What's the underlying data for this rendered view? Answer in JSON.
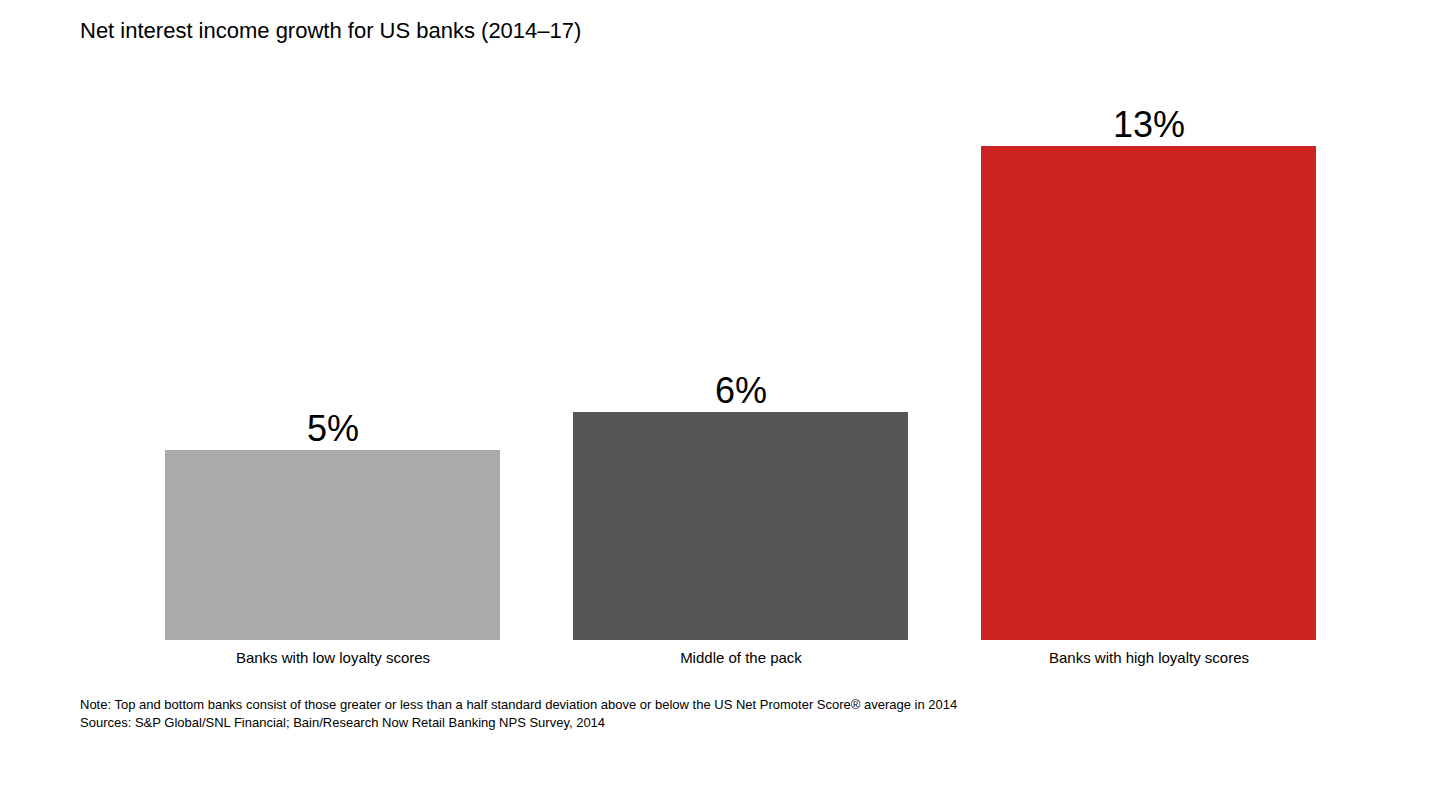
{
  "chart_data": {
    "type": "bar",
    "title": "Net interest income growth for US banks (2014–17)",
    "categories": [
      "Banks with low loyalty scores",
      "Middle of the pack",
      "Banks with high loyalty scores"
    ],
    "values": [
      5,
      6,
      13
    ],
    "value_labels": [
      "5%",
      "6%",
      "13%"
    ],
    "colors": [
      "#aaaaaa",
      "#555555",
      "#cc2222"
    ],
    "ylim": [
      0,
      15
    ],
    "grid": false,
    "tick_labels": "x",
    "data_labels": true,
    "annotations": [
      "Note: Top and bottom banks consist of those greater or less than a half standard deviation above or below the US Net Promoter Score® average in 2014",
      "Sources: S&P Global/SNL Financial; Bain/Research Now Retail Banking NPS Survey, 2014"
    ]
  }
}
